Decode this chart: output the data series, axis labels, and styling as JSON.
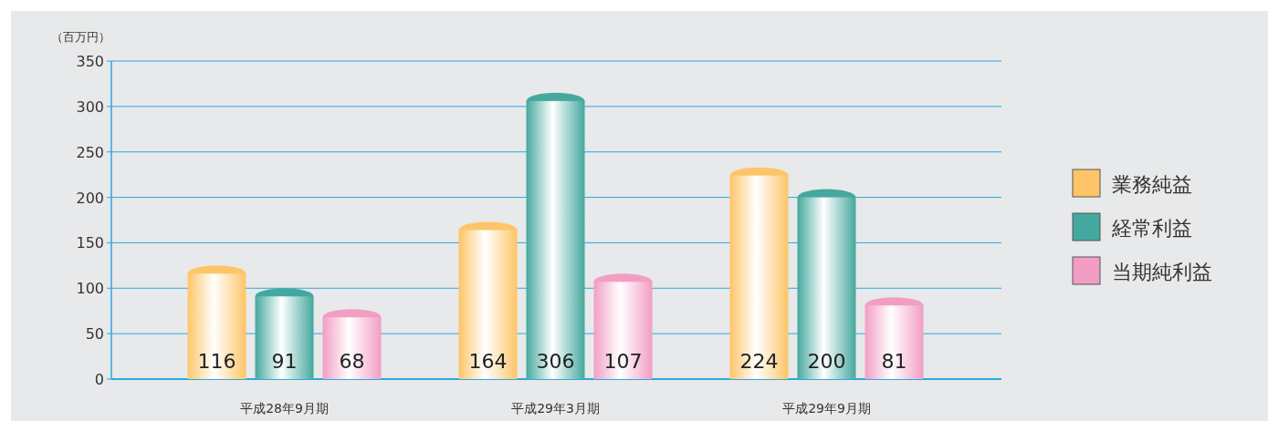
{
  "chart_data": {
    "type": "bar",
    "ylabel": "（百万円）",
    "categories": [
      "平成28年9月期",
      "平成29年3月期",
      "平成29年9月期"
    ],
    "series": [
      {
        "name": "業務純益",
        "color": "#fdc567",
        "values": [
          116,
          164,
          224
        ]
      },
      {
        "name": "経常利益",
        "color": "#45a89e",
        "values": [
          91,
          306,
          200
        ]
      },
      {
        "name": "当期純利益",
        "color": "#f29ec4",
        "values": [
          68,
          107,
          81
        ]
      }
    ],
    "ylim": [
      0,
      350
    ],
    "yticks": [
      0,
      50,
      100,
      150,
      200,
      250,
      300,
      350
    ],
    "grid": "y",
    "legend": "right",
    "data_labels": true
  }
}
